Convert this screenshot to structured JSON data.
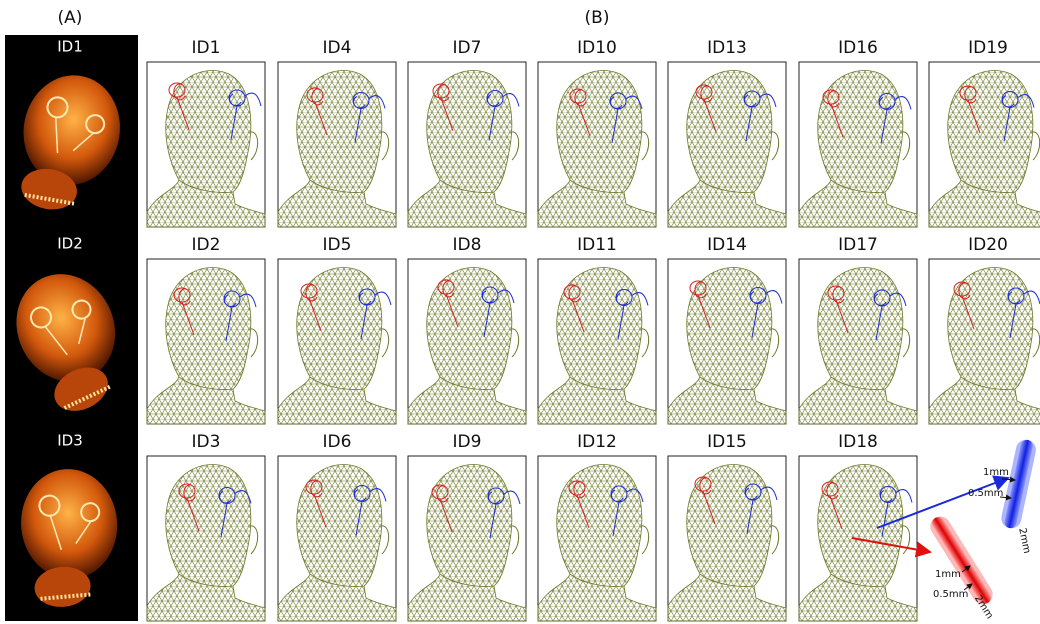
{
  "panel_a": {
    "label": "(A)",
    "subjects": [
      "ID1",
      "ID2",
      "ID3"
    ]
  },
  "panel_b": {
    "label": "(B)",
    "rows": [
      [
        "ID1",
        "ID4",
        "ID7",
        "ID10",
        "ID13",
        "ID16",
        "ID19"
      ],
      [
        "ID2",
        "ID5",
        "ID8",
        "ID11",
        "ID14",
        "ID17",
        "ID20"
      ],
      [
        "ID3",
        "ID6",
        "ID9",
        "ID12",
        "ID15",
        "ID18"
      ]
    ]
  },
  "electrode_diagram": {
    "blue": {
      "inner": "1mm",
      "gap": "0.5mm",
      "length": "2mm"
    },
    "red": {
      "inner": "1mm",
      "gap": "0.5mm",
      "length": "2mm"
    }
  }
}
